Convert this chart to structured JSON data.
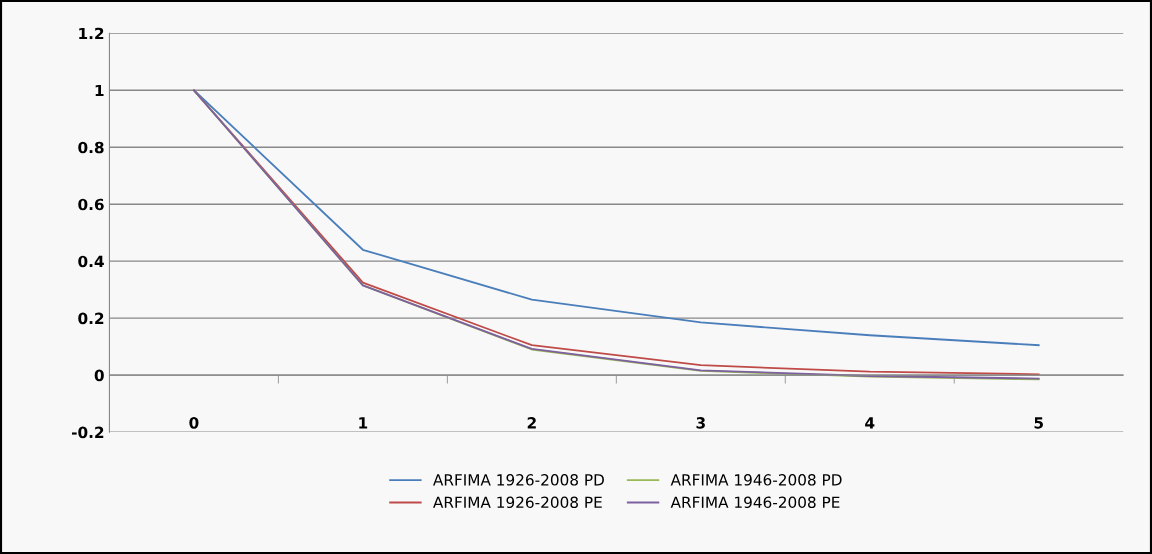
{
  "chart_data": {
    "type": "line",
    "categories": [
      "0",
      "1",
      "2",
      "3",
      "4",
      "5"
    ],
    "series": [
      {
        "name": "ARFIMA 1926-2008 PD",
        "color": "#4a7ebb",
        "values": [
          1,
          0.44,
          0.265,
          0.185,
          0.14,
          0.105
        ]
      },
      {
        "name": "ARFIMA 1926-2008 PE",
        "color": "#be4b48",
        "values": [
          1,
          0.325,
          0.105,
          0.035,
          0.012,
          0.003
        ]
      },
      {
        "name": "ARFIMA 1946-2008 PD",
        "color": "#98b954",
        "values": [
          1,
          0.315,
          0.09,
          0.015,
          -0.005,
          -0.015
        ]
      },
      {
        "name": "ARFIMA 1946-2008 PE",
        "color": "#7d60a0",
        "values": [
          1,
          0.315,
          0.092,
          0.017,
          -0.003,
          -0.012
        ]
      }
    ],
    "ylim": [
      -0.2,
      1.2
    ],
    "yticks": [
      -0.2,
      0,
      0.2,
      0.4,
      0.6,
      0.8,
      1,
      1.2
    ],
    "grid": "y",
    "legend": "bottom",
    "marker": "none",
    "line_style": "solid"
  }
}
